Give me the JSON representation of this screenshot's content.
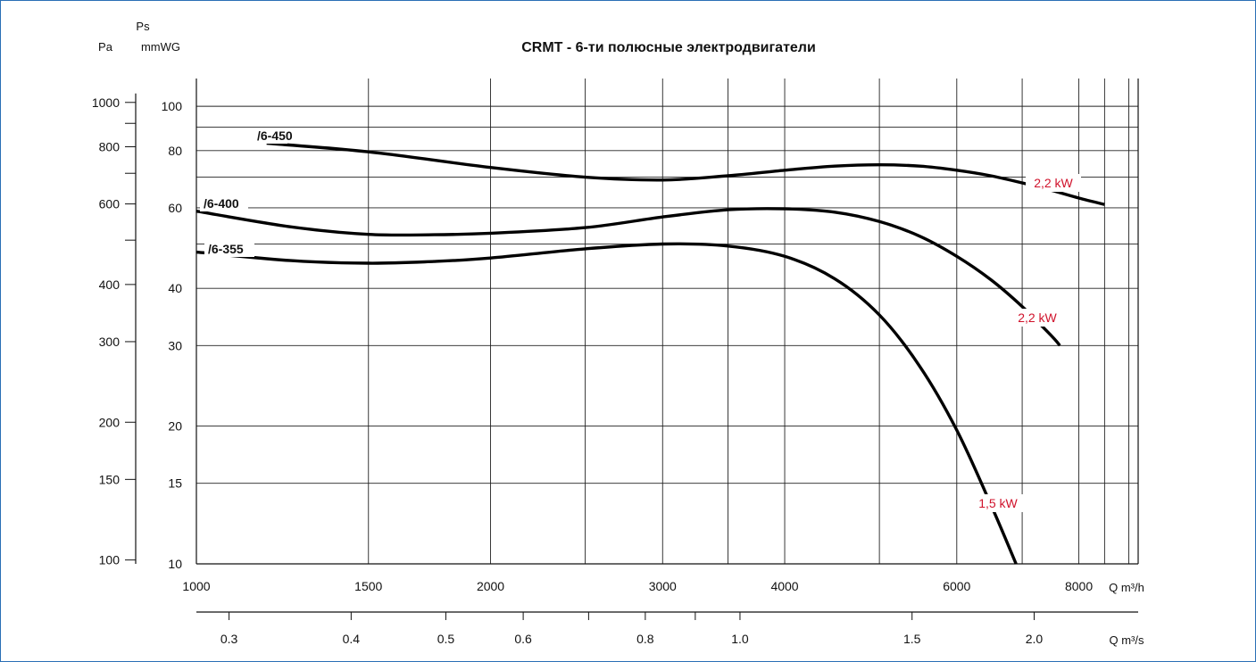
{
  "chart_data": {
    "type": "line",
    "title": "CRMT  -  6-ти полюсные электродвигатели",
    "x_axis": {
      "label": "Q m³/h",
      "scale": "log",
      "range": [
        1000,
        9200
      ],
      "ticks": [
        1000,
        1500,
        2000,
        3000,
        4000,
        6000,
        8000
      ],
      "tick_labels": [
        "1000",
        "1500",
        "2000",
        "3000",
        "4000",
        "6000",
        "8000"
      ],
      "grid_lines": [
        1000,
        1500,
        2000,
        2500,
        3000,
        3500,
        4000,
        5000,
        6000,
        7000,
        8000,
        8500,
        9000
      ]
    },
    "x2_axis": {
      "label": "Q m³/s",
      "ticks": [
        0.3,
        0.4,
        0.5,
        0.6,
        0.8,
        1.0,
        1.5,
        2.0
      ],
      "tick_labels": [
        "0.3",
        "0.4",
        "0.5",
        "0.6",
        "0.8",
        "1.0",
        "1.5",
        "2.0"
      ],
      "minor_ticks": [
        0.7,
        0.9
      ]
    },
    "y_axis": {
      "label": "Ps",
      "unit_label": "mmWG",
      "scale": "log",
      "range": [
        10,
        115
      ],
      "ticks": [
        10,
        15,
        20,
        30,
        40,
        60,
        80,
        100
      ],
      "tick_labels": [
        "10",
        "15",
        "20",
        "30",
        "40",
        "60",
        "80",
        "100"
      ],
      "grid_lines": [
        10,
        15,
        20,
        30,
        40,
        50,
        60,
        70,
        80,
        90,
        100
      ]
    },
    "y2_axis": {
      "label": "Pa",
      "ticks": [
        100,
        150,
        200,
        300,
        400,
        600,
        800,
        1000
      ],
      "tick_labels": [
        "100",
        "150",
        "200",
        "300",
        "400",
        "600",
        "800",
        "1000"
      ],
      "minor_ticks": [
        500,
        700,
        900
      ]
    },
    "series": [
      {
        "name": "/6-450",
        "power": "2,2 kW",
        "x": [
          1180,
          1500,
          2000,
          2500,
          3000,
          3500,
          4000,
          4500,
          5000,
          5500,
          6000,
          6500,
          7000,
          7500,
          8000,
          8500
        ],
        "y": [
          83,
          79.5,
          73.5,
          70,
          69,
          70.5,
          72.5,
          74,
          74.5,
          74,
          72.5,
          70.5,
          68,
          65.5,
          63,
          61
        ]
      },
      {
        "name": "/6-400",
        "power": "2,2 kW",
        "x": [
          1000,
          1250,
          1500,
          1750,
          2000,
          2500,
          3000,
          3500,
          4000,
          4500,
          5000,
          5500,
          6000,
          6500,
          7000,
          7500,
          7650
        ],
        "y": [
          59,
          54.5,
          52.5,
          52.4,
          52.8,
          54.3,
          57.3,
          59.4,
          59.7,
          58.7,
          56,
          52,
          47,
          41.8,
          36.5,
          31.5,
          30
        ]
      },
      {
        "name": "/6-355",
        "power": "1,5 kW",
        "x": [
          1000,
          1250,
          1500,
          1750,
          2000,
          2500,
          3000,
          3500,
          4000,
          4500,
          5000,
          5500,
          6000,
          6500,
          6900
        ],
        "y": [
          48,
          46,
          45.4,
          45.8,
          46.6,
          48.8,
          50,
          49.5,
          47,
          42,
          35,
          27,
          19.6,
          13.5,
          10
        ]
      }
    ],
    "grid": true,
    "legend": "none"
  }
}
